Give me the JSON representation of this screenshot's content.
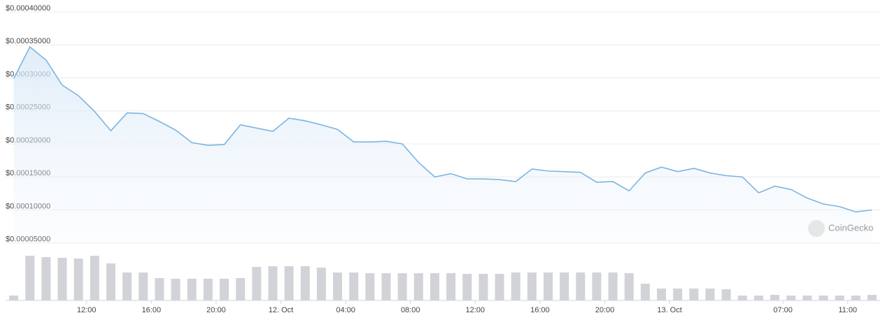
{
  "chart_data": {
    "type": "line",
    "color": "#7cb5e0",
    "watermark": "CoinGecko",
    "grid": true,
    "xlim": [
      -5,
      49
    ],
    "xticks": [
      {
        "value": 0,
        "label": "12:00"
      },
      {
        "value": 4,
        "label": "16:00"
      },
      {
        "value": 8,
        "label": "20:00"
      },
      {
        "value": 12,
        "label": "12. Oct"
      },
      {
        "value": 16,
        "label": "04:00"
      },
      {
        "value": 20,
        "label": "08:00"
      },
      {
        "value": 24,
        "label": "12:00"
      },
      {
        "value": 28,
        "label": "16:00"
      },
      {
        "value": 32,
        "label": "20:00"
      },
      {
        "value": 36,
        "label": "13. Oct"
      },
      {
        "value": 43,
        "label": "07:00"
      },
      {
        "value": 47,
        "label": "11:00"
      }
    ],
    "ylim": [
      0,
      0.0004
    ],
    "yticks": [
      {
        "value": 5e-05,
        "label": "$0.00005000"
      },
      {
        "value": 0.0001,
        "label": "$0.00010000"
      },
      {
        "value": 0.00015,
        "label": "$0.00015000"
      },
      {
        "value": 0.0002,
        "label": "$0.00020000"
      },
      {
        "value": 0.00025,
        "label": "$0.00025000"
      },
      {
        "value": 0.0003,
        "label": "$0.00030000"
      },
      {
        "value": 0.00035,
        "label": "$0.00035000"
      },
      {
        "value": 0.0004,
        "label": "$0.00040000"
      }
    ],
    "x": [
      -4.5,
      -3.5,
      -2.5,
      -1.5,
      -0.5,
      0.5,
      1.5,
      2.5,
      3.5,
      4.5,
      5.5,
      6.5,
      7.5,
      8.5,
      9.5,
      10.5,
      11.5,
      12.5,
      13.5,
      14.5,
      15.5,
      16.5,
      17.5,
      18.5,
      19.5,
      20.5,
      21.5,
      22.5,
      23.5,
      24.5,
      25.5,
      26.5,
      27.5,
      28.5,
      29.5,
      30.5,
      31.5,
      32.5,
      33.5,
      34.5,
      35.5,
      36.5,
      37.5,
      38.5,
      39.5,
      40.5,
      41.5,
      42.5,
      43.5,
      44.5,
      45.5,
      46.5,
      47.5,
      48.5
    ],
    "values": [
      0.000299,
      0.000347,
      0.000327,
      0.000289,
      0.000273,
      0.000249,
      0.00022,
      0.000247,
      0.000246,
      0.000234,
      0.000221,
      0.000202,
      0.000198,
      0.000199,
      0.000229,
      0.000224,
      0.000219,
      0.000239,
      0.000235,
      0.000229,
      0.000222,
      0.000203,
      0.000203,
      0.000204,
      0.0002,
      0.000172,
      0.00015,
      0.000155,
      0.000147,
      0.000147,
      0.000146,
      0.000143,
      0.000162,
      0.000159,
      0.000158,
      0.000157,
      0.000142,
      0.000143,
      0.000129,
      0.000156,
      0.000165,
      0.000158,
      0.000163,
      0.000156,
      0.000152,
      0.00015,
      0.000126,
      0.000136,
      0.000131,
      0.000118,
      0.000109,
      0.000105,
      9.7e-05,
      0.0001
    ],
    "volume": {
      "type": "bar",
      "color": "#d1d3d8",
      "ylim": [
        0,
        70
      ],
      "values": [
        7,
        64,
        62,
        61,
        60,
        64,
        53,
        40,
        40,
        32,
        31,
        31,
        31,
        31,
        32,
        48,
        49,
        49,
        49,
        47,
        40,
        40,
        39,
        39,
        39,
        39,
        39,
        39,
        38,
        38,
        38,
        40,
        40,
        40,
        40,
        40,
        40,
        40,
        39,
        24,
        17,
        17,
        17,
        17,
        16,
        7,
        7,
        8,
        7,
        7,
        7,
        7,
        7,
        8
      ]
    }
  }
}
